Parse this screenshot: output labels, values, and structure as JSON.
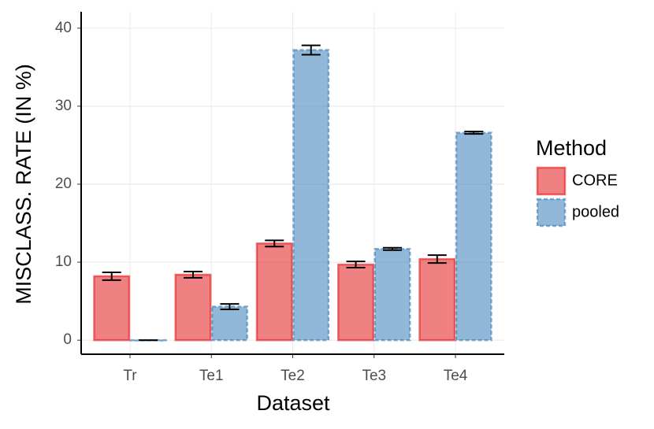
{
  "chart_data": {
    "type": "bar",
    "x_label": "Dataset",
    "y_label": "MISCLASS. RATE (IN %)",
    "categories": [
      "Tr",
      "Te1",
      "Te2",
      "Te3",
      "Te4"
    ],
    "series": [
      {
        "name": "CORE",
        "color": "#e41a1c",
        "values": [
          8.2,
          8.4,
          12.4,
          9.7,
          10.4
        ],
        "errors": [
          0.5,
          0.4,
          0.4,
          0.4,
          0.5
        ]
      },
      {
        "name": "pooled",
        "color": "#377eb8",
        "values": [
          0,
          4.3,
          37.2,
          11.7,
          26.6
        ],
        "errors": [
          0,
          0.35,
          0.6,
          0.15,
          0.15
        ]
      }
    ],
    "legend_title": "Method",
    "legend_position": "right",
    "ylim": [
      -1.8,
      42.1
    ],
    "yticks": [
      0,
      10,
      20,
      30,
      40
    ],
    "grid": true
  }
}
